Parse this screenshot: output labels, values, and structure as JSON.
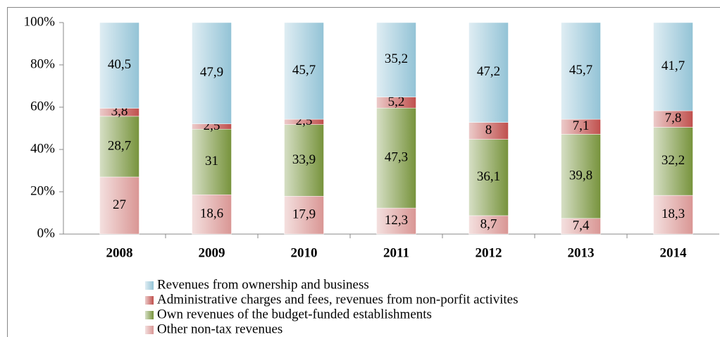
{
  "chart_data": {
    "type": "stacked_bar_100",
    "categories": [
      "2008",
      "2009",
      "2010",
      "2011",
      "2012",
      "2013",
      "2014"
    ],
    "series": [
      {
        "name": "Revenues from ownership and business",
        "color": "#93c3d6",
        "values": [
          40.5,
          47.9,
          45.7,
          35.2,
          47.2,
          45.7,
          41.7
        ],
        "value_labels": [
          "40,5",
          "47,9",
          "45,7",
          "35,2",
          "47,2",
          "45,7",
          "41,7"
        ]
      },
      {
        "name": "Administrative charges and fees, revenues from non-porfit activites",
        "color": "#c0504d",
        "values": [
          3.8,
          2.5,
          2.5,
          5.2,
          8,
          7.1,
          7.8
        ],
        "value_labels": [
          "3,8",
          "2,5",
          "2,5",
          "5,2",
          "8",
          "7,1",
          "7,8"
        ]
      },
      {
        "name": "Own revenues of the budget-funded establishments",
        "color": "#77933c",
        "values": [
          28.7,
          31,
          33.9,
          47.3,
          36.1,
          39.8,
          32.2
        ],
        "value_labels": [
          "28,7",
          "31",
          "33,9",
          "47,3",
          "36,1",
          "39,8",
          "32,2"
        ]
      },
      {
        "name": "Other non-tax revenues",
        "color": "#d99694",
        "values": [
          27,
          18.6,
          17.9,
          12.3,
          8.7,
          7.4,
          18.3
        ],
        "value_labels": [
          "27",
          "18,6",
          "17,9",
          "12,3",
          "8,7",
          "7,4",
          "18,3"
        ]
      }
    ],
    "ylim": [
      0,
      100
    ],
    "yticks": [
      {
        "value": 0,
        "label": "0%"
      },
      {
        "value": 20,
        "label": "20%"
      },
      {
        "value": 40,
        "label": "40%"
      },
      {
        "value": 60,
        "label": "60%"
      },
      {
        "value": 80,
        "label": "80%"
      },
      {
        "value": 100,
        "label": "100%"
      }
    ],
    "legend": "bottom"
  }
}
